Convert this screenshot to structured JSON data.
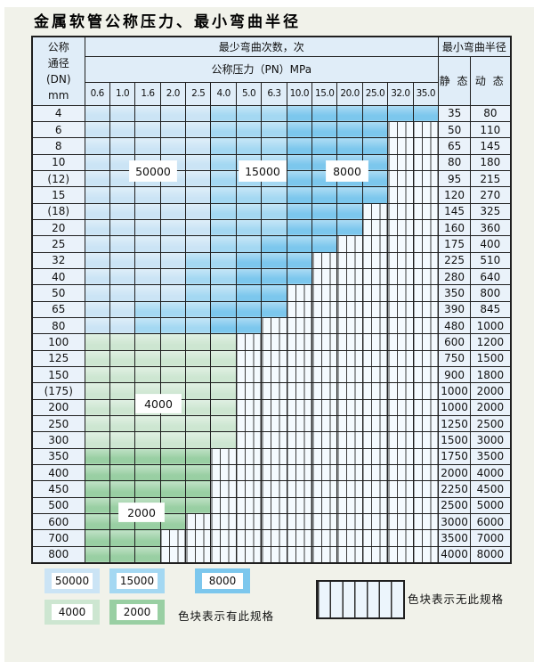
{
  "title": "金属软管公称压力、最小弯曲半径",
  "colors": {
    "c50": "#cbe4f5",
    "c15": "#a4d8f2",
    "c80": "#7cc7ed",
    "c40": "#cde6d1",
    "c20": "#99cfa3",
    "hatch_bg": "#f4fafe",
    "header_bg": "#e0edf8",
    "label_bg": "#eaf2fa",
    "border": "#1f1f1f",
    "page_bg": "#f1f2ea",
    "title_color": "#000000"
  },
  "chart_data": {
    "type": "table",
    "title": "金属软管公称压力、最小弯曲半径",
    "header": {
      "dn_lines": [
        "公称",
        "通径",
        "(DN)",
        "mm"
      ],
      "cycles_header": "最少弯曲次数，次",
      "pressure_header": "公称压力（PN）MPa",
      "radius_header": "最小弯曲半径",
      "static_label": "静 态",
      "dynamic_label": "动 态",
      "pressures": [
        "0.6",
        "1.0",
        "1.6",
        "2.0",
        "2.5",
        "4.0",
        "5.0",
        "6.3",
        "10.0",
        "15.0",
        "20.0",
        "25.0",
        "32.0",
        "35.0"
      ]
    },
    "cell_legend": {
      "50": 50000,
      "15": 15000,
      "80": 8000,
      "40": 4000,
      "20": 2000,
      "nx": "无此规格"
    },
    "rows": [
      {
        "dn": "4",
        "static": "35",
        "dynamic": "80",
        "cells": [
          "50",
          "50",
          "50",
          "50",
          "50",
          "15",
          "15",
          "15",
          "80",
          "80",
          "80",
          "80",
          "80",
          "80"
        ]
      },
      {
        "dn": "6",
        "static": "50",
        "dynamic": "110",
        "cells": [
          "50",
          "50",
          "50",
          "50",
          "50",
          "15",
          "15",
          "15",
          "80",
          "80",
          "80",
          "80",
          "nx",
          "nx"
        ]
      },
      {
        "dn": "8",
        "static": "65",
        "dynamic": "145",
        "cells": [
          "50",
          "50",
          "50",
          "50",
          "50",
          "15",
          "15",
          "15",
          "80",
          "80",
          "80",
          "80",
          "nx",
          "nx"
        ]
      },
      {
        "dn": "10",
        "static": "80",
        "dynamic": "180",
        "cells": [
          "50",
          "50",
          "50",
          "50",
          "50",
          "15",
          "15",
          "15",
          "80",
          "80",
          "80",
          "80",
          "nx",
          "nx"
        ]
      },
      {
        "dn": "(12)",
        "static": "95",
        "dynamic": "215",
        "cells": [
          "50",
          "50",
          "50",
          "50",
          "50",
          "15",
          "15",
          "15",
          "80",
          "80",
          "80",
          "80",
          "nx",
          "nx"
        ]
      },
      {
        "dn": "15",
        "static": "120",
        "dynamic": "270",
        "cells": [
          "50",
          "50",
          "50",
          "50",
          "50",
          "15",
          "15",
          "15",
          "80",
          "80",
          "80",
          "80",
          "nx",
          "nx"
        ]
      },
      {
        "dn": "(18)",
        "static": "145",
        "dynamic": "325",
        "cells": [
          "50",
          "50",
          "50",
          "50",
          "50",
          "15",
          "15",
          "15",
          "80",
          "80",
          "80",
          "nx",
          "nx",
          "nx"
        ]
      },
      {
        "dn": "20",
        "static": "160",
        "dynamic": "360",
        "cells": [
          "50",
          "50",
          "50",
          "50",
          "50",
          "15",
          "15",
          "15",
          "80",
          "80",
          "80",
          "nx",
          "nx",
          "nx"
        ]
      },
      {
        "dn": "25",
        "static": "175",
        "dynamic": "400",
        "cells": [
          "50",
          "50",
          "50",
          "50",
          "50",
          "15",
          "15",
          "80",
          "80",
          "80",
          "nx",
          "nx",
          "nx",
          "nx"
        ]
      },
      {
        "dn": "32",
        "static": "225",
        "dynamic": "510",
        "cells": [
          "50",
          "50",
          "50",
          "50",
          "15",
          "15",
          "80",
          "80",
          "80",
          "nx",
          "nx",
          "nx",
          "nx",
          "nx"
        ]
      },
      {
        "dn": "40",
        "static": "280",
        "dynamic": "640",
        "cells": [
          "50",
          "50",
          "50",
          "50",
          "15",
          "15",
          "80",
          "80",
          "80",
          "nx",
          "nx",
          "nx",
          "nx",
          "nx"
        ]
      },
      {
        "dn": "50",
        "static": "350",
        "dynamic": "800",
        "cells": [
          "50",
          "50",
          "50",
          "50",
          "15",
          "15",
          "80",
          "80",
          "nx",
          "nx",
          "nx",
          "nx",
          "nx",
          "nx"
        ]
      },
      {
        "dn": "65",
        "static": "390",
        "dynamic": "845",
        "cells": [
          "50",
          "50",
          "15",
          "15",
          "15",
          "80",
          "80",
          "80",
          "nx",
          "nx",
          "nx",
          "nx",
          "nx",
          "nx"
        ]
      },
      {
        "dn": "80",
        "static": "480",
        "dynamic": "1000",
        "cells": [
          "50",
          "50",
          "15",
          "15",
          "15",
          "80",
          "80",
          "nx",
          "nx",
          "nx",
          "nx",
          "nx",
          "nx",
          "nx"
        ]
      },
      {
        "dn": "100",
        "static": "600",
        "dynamic": "1200",
        "cells": [
          "40",
          "40",
          "40",
          "40",
          "40",
          "40",
          "nx",
          "nx",
          "nx",
          "nx",
          "nx",
          "nx",
          "nx",
          "nx"
        ]
      },
      {
        "dn": "125",
        "static": "750",
        "dynamic": "1500",
        "cells": [
          "40",
          "40",
          "40",
          "40",
          "40",
          "40",
          "nx",
          "nx",
          "nx",
          "nx",
          "nx",
          "nx",
          "nx",
          "nx"
        ]
      },
      {
        "dn": "150",
        "static": "900",
        "dynamic": "1800",
        "cells": [
          "40",
          "40",
          "40",
          "40",
          "40",
          "40",
          "nx",
          "nx",
          "nx",
          "nx",
          "nx",
          "nx",
          "nx",
          "nx"
        ]
      },
      {
        "dn": "(175)",
        "static": "1000",
        "dynamic": "2000",
        "cells": [
          "40",
          "40",
          "40",
          "40",
          "40",
          "40",
          "nx",
          "nx",
          "nx",
          "nx",
          "nx",
          "nx",
          "nx",
          "nx"
        ]
      },
      {
        "dn": "200",
        "static": "1000",
        "dynamic": "2000",
        "cells": [
          "40",
          "40",
          "40",
          "40",
          "40",
          "40",
          "nx",
          "nx",
          "nx",
          "nx",
          "nx",
          "nx",
          "nx",
          "nx"
        ]
      },
      {
        "dn": "250",
        "static": "1250",
        "dynamic": "2500",
        "cells": [
          "40",
          "40",
          "40",
          "40",
          "40",
          "40",
          "nx",
          "nx",
          "nx",
          "nx",
          "nx",
          "nx",
          "nx",
          "nx"
        ]
      },
      {
        "dn": "300",
        "static": "1500",
        "dynamic": "3000",
        "cells": [
          "40",
          "40",
          "40",
          "40",
          "40",
          "40",
          "nx",
          "nx",
          "nx",
          "nx",
          "nx",
          "nx",
          "nx",
          "nx"
        ]
      },
      {
        "dn": "350",
        "static": "1750",
        "dynamic": "3500",
        "cells": [
          "20",
          "20",
          "20",
          "20",
          "20",
          "nx",
          "nx",
          "nx",
          "nx",
          "nx",
          "nx",
          "nx",
          "nx",
          "nx"
        ]
      },
      {
        "dn": "400",
        "static": "2000",
        "dynamic": "4000",
        "cells": [
          "20",
          "20",
          "20",
          "20",
          "20",
          "nx",
          "nx",
          "nx",
          "nx",
          "nx",
          "nx",
          "nx",
          "nx",
          "nx"
        ]
      },
      {
        "dn": "450",
        "static": "2250",
        "dynamic": "4500",
        "cells": [
          "20",
          "20",
          "20",
          "20",
          "20",
          "nx",
          "nx",
          "nx",
          "nx",
          "nx",
          "nx",
          "nx",
          "nx",
          "nx"
        ]
      },
      {
        "dn": "500",
        "static": "2500",
        "dynamic": "5000",
        "cells": [
          "20",
          "20",
          "20",
          "20",
          "20",
          "nx",
          "nx",
          "nx",
          "nx",
          "nx",
          "nx",
          "nx",
          "nx",
          "nx"
        ]
      },
      {
        "dn": "600",
        "static": "3000",
        "dynamic": "6000",
        "cells": [
          "20",
          "20",
          "20",
          "20",
          "nx",
          "nx",
          "nx",
          "nx",
          "nx",
          "nx",
          "nx",
          "nx",
          "nx",
          "nx"
        ]
      },
      {
        "dn": "700",
        "static": "3500",
        "dynamic": "7000",
        "cells": [
          "20",
          "20",
          "20",
          "nx",
          "nx",
          "nx",
          "nx",
          "nx",
          "nx",
          "nx",
          "nx",
          "nx",
          "nx",
          "nx"
        ]
      },
      {
        "dn": "800",
        "static": "4000",
        "dynamic": "8000",
        "cells": [
          "20",
          "20",
          "20",
          "nx",
          "nx",
          "nx",
          "nx",
          "nx",
          "nx",
          "nx",
          "nx",
          "nx",
          "nx",
          "nx"
        ]
      }
    ]
  },
  "overlay_tags": [
    {
      "label": "50000",
      "color_key": "c50"
    },
    {
      "label": "15000",
      "color_key": "c15"
    },
    {
      "label": "8000",
      "color_key": "c80"
    },
    {
      "label": "4000",
      "color_key": "c40"
    },
    {
      "label": "2000",
      "color_key": "c20"
    }
  ],
  "legend": {
    "items": [
      {
        "label": "50000",
        "color_key": "c50"
      },
      {
        "label": "15000",
        "color_key": "c15"
      },
      {
        "label": "8000",
        "color_key": "c80"
      },
      {
        "label": "4000",
        "color_key": "c40"
      },
      {
        "label": "2000",
        "color_key": "c20"
      }
    ],
    "has_spec_text": "色块表示有此规格",
    "no_spec_text": "色块表示无此规格"
  }
}
